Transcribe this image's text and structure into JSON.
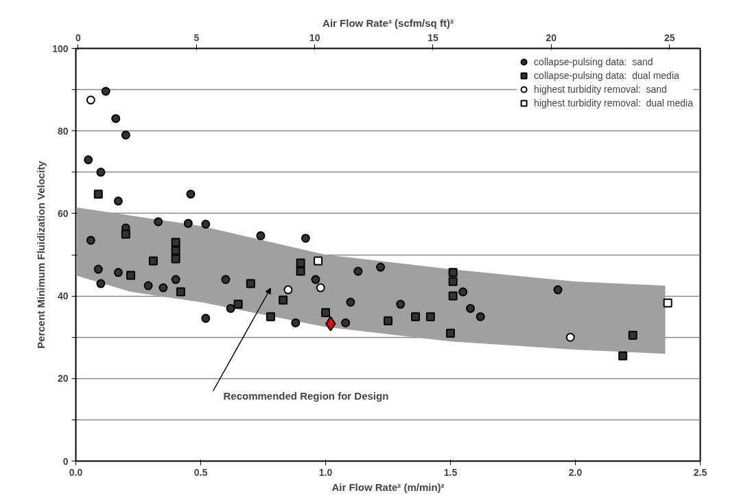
{
  "chart_data": {
    "type": "scatter",
    "xlabel": "Air Flow Rate² (m/min)²",
    "x2label": "Air Flow Rate² (scfm/sq ft)²",
    "ylabel": "Percent Minimum Fluidization Velocity",
    "xlim": [
      0,
      2.5
    ],
    "ylim": [
      0,
      100
    ],
    "xticks": [
      {
        "value": 0,
        "label": "0.0"
      },
      0.5,
      {
        "value": 1,
        "label": "1.0"
      },
      1.5,
      {
        "value": 2,
        "label": "2.0"
      },
      2.5
    ],
    "x2lim": [
      -0.1,
      26.3
    ],
    "x2ticks": [
      0,
      5,
      10,
      15,
      20,
      25
    ],
    "yticks": [
      0,
      {
        "value": 10,
        "label": null
      },
      20,
      {
        "value": 30,
        "label": null
      },
      40,
      {
        "value": 50,
        "label": null
      },
      60,
      {
        "value": 70,
        "label": null
      },
      80,
      {
        "value": 90,
        "label": null
      },
      100
    ],
    "grid": "y",
    "legend": "top right",
    "annotations": [
      "Recommended Region for Design"
    ],
    "series": [
      {
        "type": "line",
        "color": "#a0a0a0",
        "x": [
          0,
          0.22,
          0.5,
          1.0,
          1.5,
          2.0,
          2.36
        ],
        "values": [
          null,
          null,
          null,
          null,
          null,
          null,
          null
        ],
        "upper": [
          61.5,
          59.5,
          57,
          50,
          46.5,
          43.5,
          42.5
        ],
        "lower": [
          45,
          41,
          38.5,
          32.5,
          29,
          27,
          26
        ]
      },
      {
        "name": "collapse-pulsing data:  sand",
        "marker": "circle",
        "color": "#333333",
        "x": [
          0.05,
          0.1,
          0.06,
          0.09,
          0.1,
          0.12,
          0.16,
          0.2,
          0.17,
          0.2,
          0.17,
          0.46,
          0.33,
          0.45,
          0.52,
          0.52,
          0.74,
          0.92,
          0.35,
          0.4,
          0.29,
          0.6,
          0.88,
          1.08,
          1.13,
          1.22,
          1.3,
          1.55,
          1.62,
          1.93,
          1.1,
          0.96,
          0.62,
          1.58
        ],
        "values": [
          73,
          70,
          53.5,
          46.5,
          43,
          89.6,
          83,
          79,
          63,
          56.5,
          45.7,
          64.7,
          58,
          57.6,
          57.4,
          34.6,
          54.6,
          54,
          42,
          44,
          42.5,
          44,
          33.5,
          33.5,
          46,
          47,
          38,
          41,
          35,
          41.5,
          38.5,
          44,
          37,
          37
        ]
      },
      {
        "name": "collapse-pulsing data:  dual media",
        "marker": "square",
        "color": "#333333",
        "x": [
          0.09,
          0.4,
          0.4,
          0.4,
          0.31,
          0.2,
          0.22,
          0.42,
          0.65,
          0.78,
          0.9,
          0.9,
          1.25,
          1.36,
          1.42,
          1.51,
          1.51,
          1.51,
          1.5,
          2.23,
          2.19,
          0.7,
          0.83,
          1.0
        ],
        "values": [
          64.7,
          53,
          51,
          49,
          48.5,
          55,
          45,
          41,
          38,
          35,
          48,
          46,
          34,
          35,
          35,
          45.7,
          43.5,
          40,
          31,
          30.5,
          25.5,
          43,
          39,
          36
        ]
      },
      {
        "name": "highest turbidity removal:  sand",
        "marker": "circle",
        "color": "#ffffff",
        "x": [
          0.06,
          0.85,
          0.98,
          1.98
        ],
        "values": [
          87.5,
          41.5,
          42,
          30
        ]
      },
      {
        "name": "highest turbidity removal:  dual media",
        "marker": "square",
        "color": "#ffffff",
        "x": [
          2.37,
          0.97
        ],
        "values": [
          38.3,
          48.5
        ]
      },
      {
        "marker": "diamond",
        "color": "#ff0000",
        "x": [
          1.02
        ],
        "values": [
          33.3
        ]
      }
    ]
  }
}
